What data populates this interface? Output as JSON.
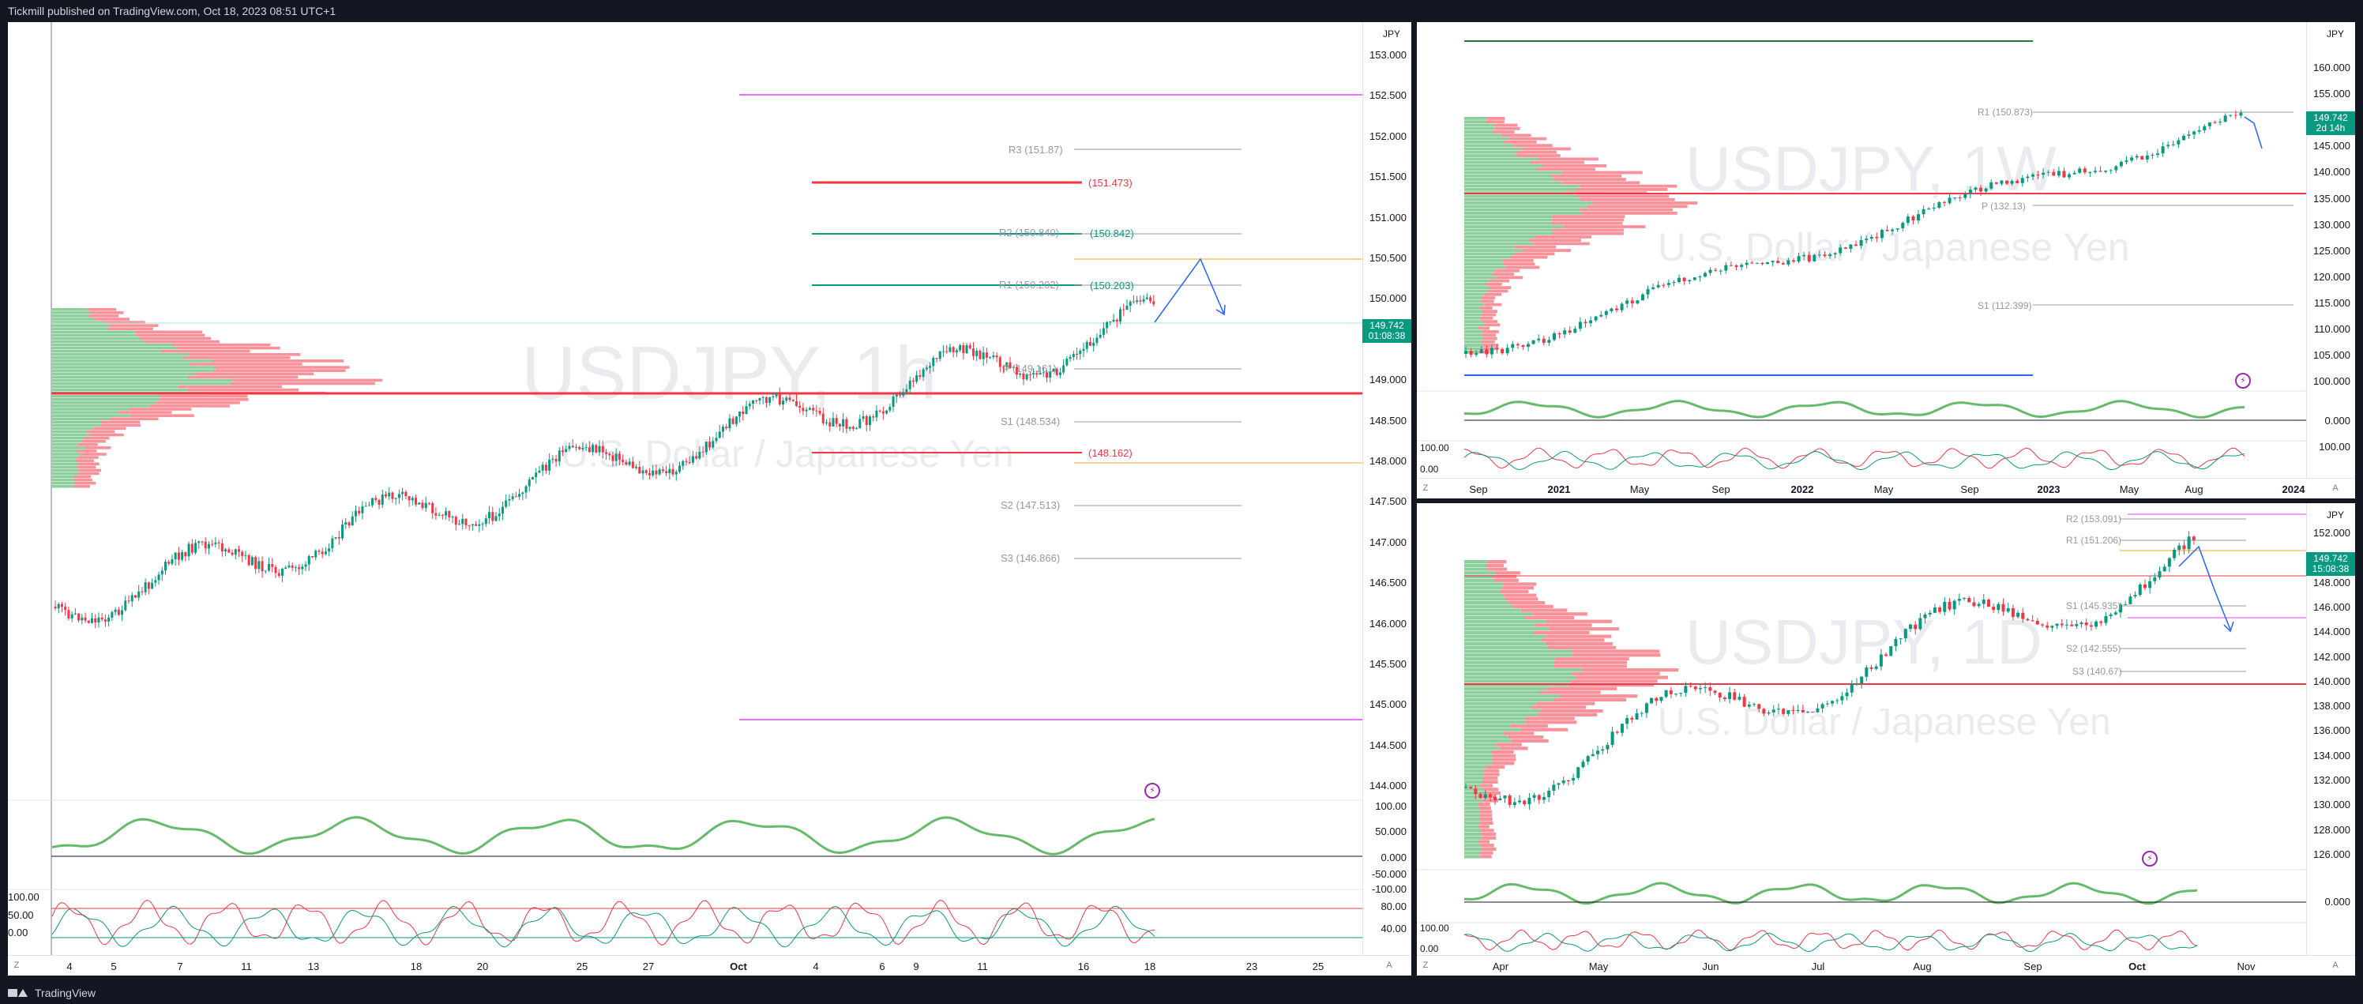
{
  "header": {
    "publish_text": "Tickmill published on TradingView.com, Oct 18, 2023 08:51 UTC+1"
  },
  "footer": {
    "brand": "TradingView"
  },
  "colors": {
    "up": "#089981",
    "down": "#f23645",
    "pivot_gray": "#9598a1",
    "magenta": "#e040fb",
    "orange": "#f5a623",
    "blue": "#2962ff"
  },
  "left_panel": {
    "unit": "JPY",
    "watermark_symbol": "USDJPY, 1h",
    "watermark_name": "U.S. Dollar / Japanese Yen",
    "price_ticks": [
      "153.000",
      "152.500",
      "152.000",
      "151.500",
      "151.000",
      "150.500",
      "150.000",
      "149.500",
      "149.000",
      "148.500",
      "148.000",
      "147.500",
      "147.000",
      "146.500",
      "146.000",
      "145.500",
      "145.000",
      "144.500",
      "144.000"
    ],
    "last_price": "149.742",
    "countdown": "01:08:38",
    "levels": {
      "r3": "R3 (151.87)",
      "upper_red": "(151.473)",
      "r2": "R2 (150.840)",
      "r2_val": "(150.842)",
      "r1": "R1 (150.202)",
      "r1_val": "(150.203)",
      "p": "P (149.161)",
      "s1": "S1 (148.534)",
      "lower_red": "(148.162)",
      "s2": "S2 (147.513)",
      "s3": "S3 (146.866)"
    },
    "rsi_ticks": [
      "100.00",
      "50.000",
      "0.000",
      "-50.000",
      "-100.00"
    ],
    "stoch_ticks": [
      "100.00",
      "50.00",
      "0.00"
    ],
    "stoch_right_ticks": [
      "80.00",
      "40.00"
    ],
    "time_ticks": [
      "4",
      "5",
      "7",
      "11",
      "13",
      "18",
      "20",
      "25",
      "27",
      "Oct",
      "4",
      "6",
      "9",
      "11",
      "16",
      "18",
      "23",
      "25"
    ],
    "corner_left": "Z",
    "corner_right": "A"
  },
  "top_right_panel": {
    "unit": "JPY",
    "watermark_symbol": "USDJPY, 1W",
    "watermark_name": "U.S. Dollar / Japanese Yen",
    "price_ticks": [
      "160.000",
      "155.000",
      "150.000",
      "145.000",
      "140.000",
      "135.000",
      "130.000",
      "125.000",
      "120.000",
      "115.000",
      "110.000",
      "105.000",
      "100.000"
    ],
    "last_price": "149.742",
    "countdown": "2d 14h",
    "levels": {
      "r1": "R1 (150.873)",
      "p": "P (132.13)",
      "s1": "S1 (112.399)"
    },
    "rsi_ticks": [
      "0.000"
    ],
    "stoch_ticks": [
      "100.00",
      "0.00"
    ],
    "stoch_right_ticks": [
      "100.00"
    ],
    "time_ticks": [
      "Sep",
      "2021",
      "May",
      "Sep",
      "2022",
      "May",
      "Sep",
      "2023",
      "May",
      "Aug",
      "2024"
    ],
    "corner_left": "Z",
    "corner_right": "A"
  },
  "bottom_right_panel": {
    "unit": "JPY",
    "watermark_symbol": "USDJPY, 1D",
    "watermark_name": "U.S. Dollar / Japanese Yen",
    "price_ticks": [
      "152.000",
      "150.000",
      "148.000",
      "146.000",
      "144.000",
      "142.000",
      "140.000",
      "138.000",
      "136.000",
      "134.000",
      "132.000",
      "130.000",
      "128.000",
      "126.000"
    ],
    "last_price": "149.742",
    "countdown": "15:08:38",
    "levels": {
      "r2": "R2 (153.091)",
      "r1": "R1 (151.206)",
      "s1": "S1 (145.935)",
      "s2": "S2 (142.555)",
      "s3": "S3 (140.67)"
    },
    "rsi_ticks": [
      "0.000"
    ],
    "stoch_ticks": [
      "100.00",
      "0.00"
    ],
    "time_ticks": [
      "Apr",
      "May",
      "Jun",
      "Jul",
      "Aug",
      "Sep",
      "Oct",
      "Nov"
    ],
    "corner_left": "Z",
    "corner_right": "A"
  }
}
